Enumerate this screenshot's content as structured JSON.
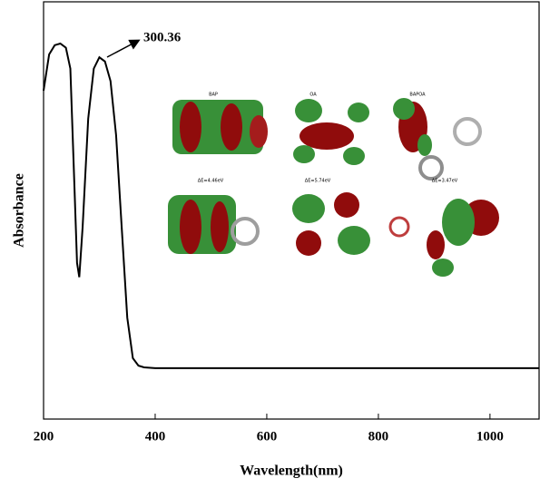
{
  "chart_data": {
    "type": "line",
    "x_label": "Wavelength(nm)",
    "y_label": "Absorbance",
    "annotation": "300.36",
    "inset_labels": [
      "BAP",
      "OA",
      "BAPOA",
      "ΔE=4.46eV",
      "ΔE=5.74eV",
      "ΔE=3.47eV"
    ],
    "x": [
      200,
      210,
      220,
      230,
      240,
      248,
      255,
      260,
      264,
      270,
      280,
      290,
      300,
      310,
      320,
      330,
      340,
      350,
      360,
      370,
      380,
      400,
      600,
      800,
      1000,
      1088
    ],
    "series": [
      {
        "color": "#000000",
        "values": [
          0.787,
          0.874,
          0.896,
          0.9,
          0.89,
          0.84,
          0.57,
          0.374,
          0.34,
          0.46,
          0.72,
          0.84,
          0.867,
          0.857,
          0.81,
          0.68,
          0.46,
          0.243,
          0.146,
          0.128,
          0.124,
          0.122,
          0.122,
          0.122,
          0.122,
          0.122
        ]
      }
    ],
    "xlim": [
      200,
      1088
    ],
    "ylim": [
      0,
      1
    ],
    "xticks": [
      200,
      400,
      600,
      800,
      1000
    ]
  }
}
